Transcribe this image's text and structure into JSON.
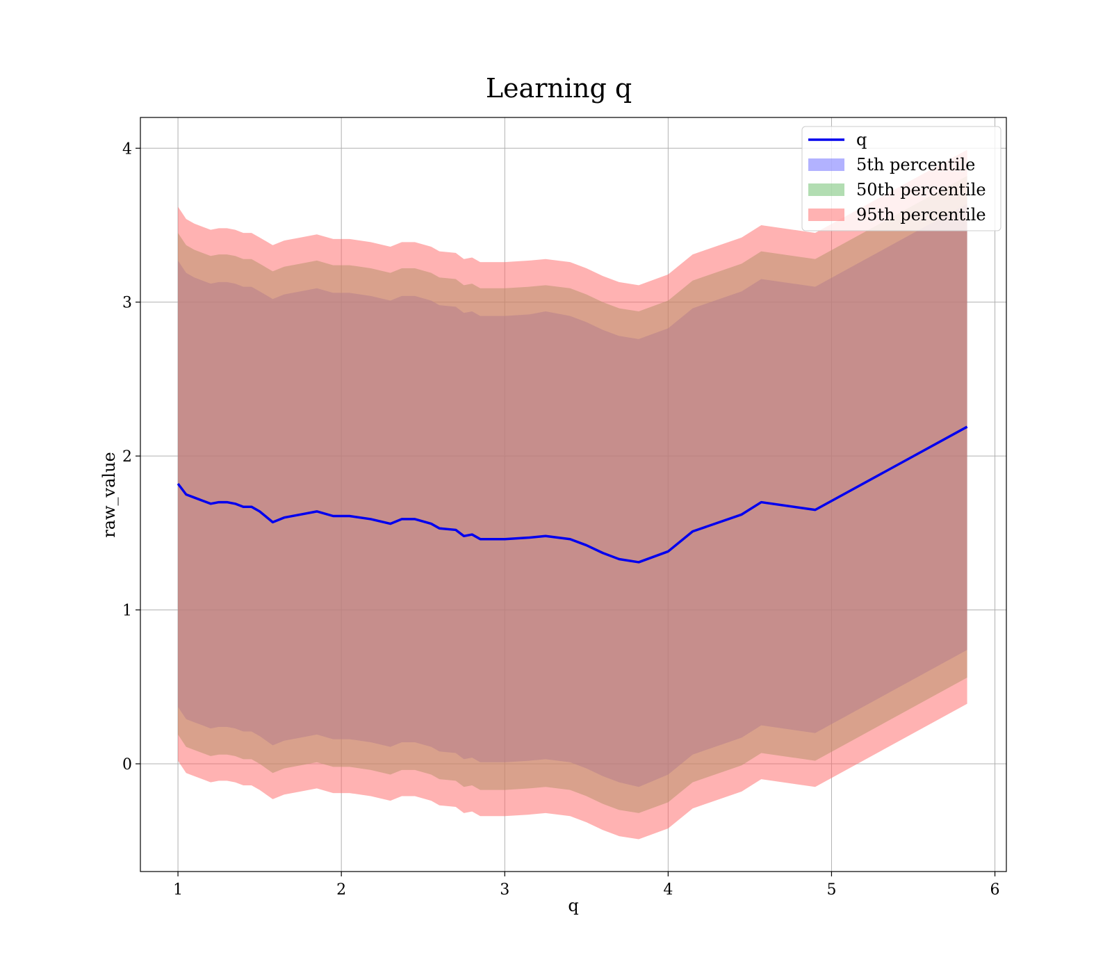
{
  "chart_data": {
    "type": "area",
    "title": "Learning q",
    "xlabel": "q",
    "ylabel": "raw_value",
    "xlim": [
      0.77,
      6.07
    ],
    "ylim": [
      -0.7,
      4.2
    ],
    "xticks": [
      1,
      2,
      3,
      4,
      5,
      6
    ],
    "yticks": [
      0,
      1,
      2,
      3,
      4
    ],
    "grid": true,
    "legend_position": "top-right",
    "x": [
      1.0,
      1.05,
      1.1,
      1.15,
      1.2,
      1.25,
      1.3,
      1.35,
      1.4,
      1.45,
      1.5,
      1.58,
      1.65,
      1.75,
      1.85,
      1.95,
      2.05,
      2.18,
      2.3,
      2.37,
      2.45,
      2.55,
      2.6,
      2.7,
      2.75,
      2.8,
      2.85,
      3.0,
      3.15,
      3.25,
      3.4,
      3.5,
      3.6,
      3.7,
      3.82,
      4.0,
      4.15,
      4.45,
      4.57,
      4.9,
      5.83
    ],
    "series": [
      {
        "name": "q",
        "style": "line",
        "color": "#0000ee",
        "values": [
          1.82,
          1.75,
          1.73,
          1.71,
          1.69,
          1.7,
          1.7,
          1.69,
          1.67,
          1.67,
          1.64,
          1.57,
          1.6,
          1.62,
          1.64,
          1.61,
          1.61,
          1.59,
          1.56,
          1.59,
          1.59,
          1.56,
          1.53,
          1.52,
          1.48,
          1.49,
          1.46,
          1.46,
          1.47,
          1.48,
          1.46,
          1.42,
          1.37,
          1.33,
          1.31,
          1.38,
          1.51,
          1.62,
          1.7,
          1.65,
          2.19
        ]
      },
      {
        "name": "5th percentile",
        "style": "band",
        "color": "#6666ff",
        "upper": [
          3.27,
          3.19,
          3.16,
          3.14,
          3.12,
          3.13,
          3.13,
          3.12,
          3.1,
          3.1,
          3.07,
          3.02,
          3.05,
          3.07,
          3.09,
          3.06,
          3.06,
          3.04,
          3.01,
          3.04,
          3.04,
          3.01,
          2.98,
          2.97,
          2.93,
          2.94,
          2.91,
          2.91,
          2.92,
          2.94,
          2.91,
          2.87,
          2.82,
          2.78,
          2.76,
          2.83,
          2.96,
          3.07,
          3.15,
          3.1,
          3.64
        ],
        "lower": [
          0.37,
          0.29,
          0.27,
          0.25,
          0.23,
          0.24,
          0.24,
          0.23,
          0.21,
          0.21,
          0.18,
          0.12,
          0.15,
          0.17,
          0.19,
          0.16,
          0.16,
          0.14,
          0.11,
          0.14,
          0.14,
          0.11,
          0.08,
          0.07,
          0.03,
          0.04,
          0.01,
          0.01,
          0.02,
          0.03,
          0.01,
          -0.03,
          -0.08,
          -0.12,
          -0.15,
          -0.07,
          0.06,
          0.17,
          0.25,
          0.2,
          0.74
        ]
      },
      {
        "name": "50th percentile",
        "style": "band",
        "color": "#66bb66",
        "upper": [
          3.45,
          3.37,
          3.34,
          3.32,
          3.3,
          3.31,
          3.31,
          3.3,
          3.28,
          3.28,
          3.25,
          3.2,
          3.23,
          3.25,
          3.27,
          3.24,
          3.24,
          3.22,
          3.19,
          3.22,
          3.22,
          3.19,
          3.16,
          3.15,
          3.11,
          3.12,
          3.09,
          3.09,
          3.1,
          3.11,
          3.09,
          3.05,
          3.0,
          2.96,
          2.94,
          3.01,
          3.14,
          3.25,
          3.33,
          3.28,
          3.82
        ],
        "lower": [
          0.19,
          0.11,
          0.09,
          0.07,
          0.05,
          0.06,
          0.06,
          0.05,
          0.03,
          0.03,
          0.0,
          -0.06,
          -0.03,
          -0.01,
          0.01,
          -0.02,
          -0.02,
          -0.04,
          -0.07,
          -0.04,
          -0.04,
          -0.07,
          -0.1,
          -0.11,
          -0.15,
          -0.14,
          -0.17,
          -0.17,
          -0.16,
          -0.15,
          -0.17,
          -0.21,
          -0.26,
          -0.3,
          -0.32,
          -0.25,
          -0.12,
          -0.01,
          0.07,
          0.02,
          0.56
        ]
      },
      {
        "name": "95th percentile",
        "style": "band",
        "color": "#ff6666",
        "upper": [
          3.62,
          3.54,
          3.51,
          3.49,
          3.47,
          3.48,
          3.48,
          3.47,
          3.45,
          3.45,
          3.42,
          3.37,
          3.4,
          3.42,
          3.44,
          3.41,
          3.41,
          3.39,
          3.36,
          3.39,
          3.39,
          3.36,
          3.33,
          3.32,
          3.28,
          3.29,
          3.26,
          3.26,
          3.27,
          3.28,
          3.26,
          3.22,
          3.17,
          3.13,
          3.11,
          3.18,
          3.31,
          3.42,
          3.5,
          3.45,
          3.99
        ],
        "lower": [
          0.02,
          -0.06,
          -0.08,
          -0.1,
          -0.12,
          -0.11,
          -0.11,
          -0.12,
          -0.14,
          -0.14,
          -0.17,
          -0.23,
          -0.2,
          -0.18,
          -0.16,
          -0.19,
          -0.19,
          -0.21,
          -0.24,
          -0.21,
          -0.21,
          -0.24,
          -0.27,
          -0.28,
          -0.32,
          -0.31,
          -0.34,
          -0.34,
          -0.33,
          -0.32,
          -0.34,
          -0.38,
          -0.43,
          -0.47,
          -0.49,
          -0.42,
          -0.29,
          -0.18,
          -0.1,
          -0.15,
          0.39
        ]
      }
    ]
  }
}
